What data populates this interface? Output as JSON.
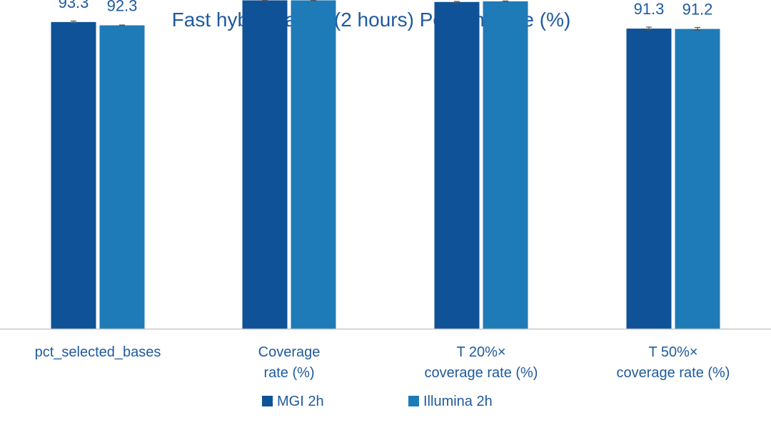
{
  "chart_data": {
    "type": "bar",
    "title": "Fast hybridization (2 hours)  Performance (%)",
    "categories": [
      [
        "pct_selected_bases"
      ],
      [
        "Coverage",
        "rate (%)"
      ],
      [
        "T 20%×",
        "coverage rate (%)"
      ],
      [
        "T 50%×",
        "coverage rate (%)"
      ]
    ],
    "series": [
      {
        "name": "MGI 2h",
        "color": "#0f5297",
        "values": [
          93.3,
          99.9,
          99.4,
          91.3
        ],
        "error": [
          0.3,
          0.1,
          0.15,
          0.45
        ]
      },
      {
        "name": "Illumina 2h",
        "color": "#1f7bb8",
        "values": [
          92.3,
          99.9,
          99.6,
          91.2
        ],
        "error": [
          0.1,
          0.1,
          0.1,
          0.45
        ]
      }
    ],
    "ylim": [
      0,
      100
    ],
    "grid": false,
    "legend_position": "bottom-center",
    "text_color": "#1f5a9e",
    "axis_color": "#c8c8c8"
  }
}
